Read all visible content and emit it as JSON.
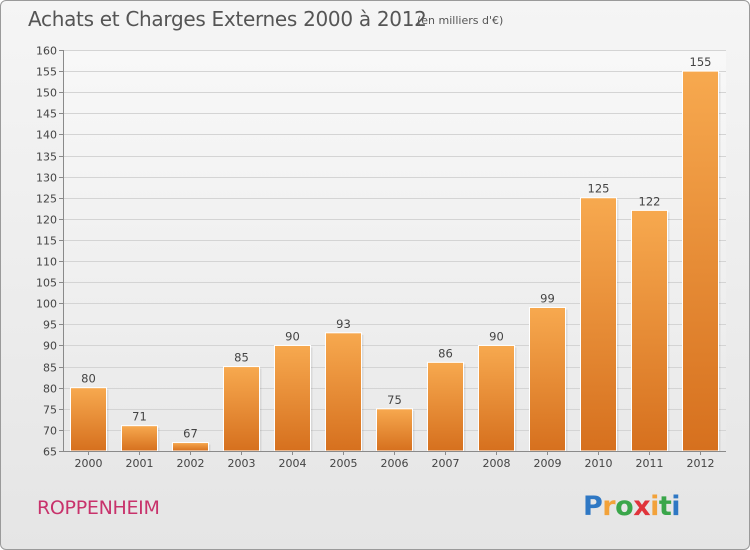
{
  "title": "Achats et Charges Externes 2000 à 2012",
  "subtitle": "(en milliers d'€)",
  "city": "ROPPENHEIM",
  "logo": {
    "letters": [
      "P",
      "r",
      "o",
      "x",
      "i",
      "t",
      "i"
    ],
    "colors": [
      "#2f78c4",
      "#f2a23a",
      "#3aa64a",
      "#e0343b",
      "#f2a23a",
      "#3aa64a",
      "#2f78c4"
    ]
  },
  "colors": {
    "bar_light": "#f7a94f",
    "bar_dark": "#d6701e",
    "city": "#c8326b",
    "grid": "#d4d4d4"
  },
  "chart_data": {
    "type": "bar",
    "title": "Achats et Charges Externes 2000 à 2012",
    "subtitle": "(en milliers d'€)",
    "categories": [
      "2000",
      "2001",
      "2002",
      "2003",
      "2004",
      "2005",
      "2006",
      "2007",
      "2008",
      "2009",
      "2010",
      "2011",
      "2012"
    ],
    "values": [
      80,
      71,
      67,
      85,
      90,
      93,
      75,
      86,
      90,
      99,
      125,
      122,
      155
    ],
    "ylim": [
      65,
      160
    ],
    "ytick_step": 5,
    "grid": true,
    "xlabel": "",
    "ylabel": ""
  }
}
